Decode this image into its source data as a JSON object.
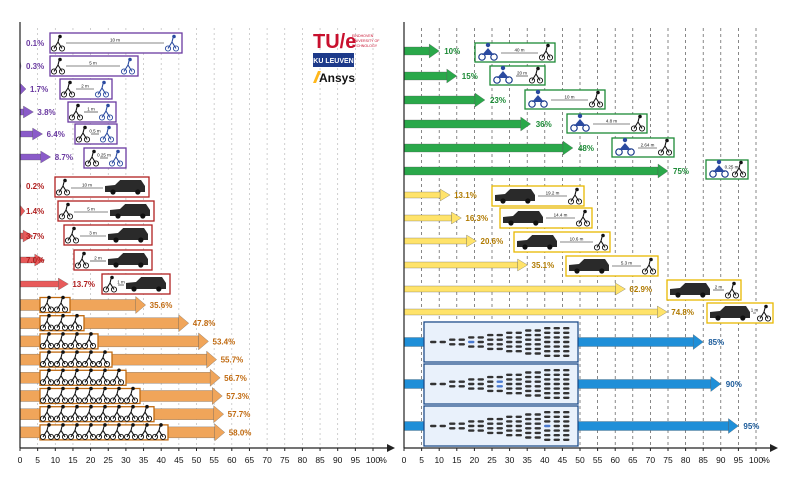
{
  "chart_data": [
    {
      "type": "bar",
      "subject": "cyclists drafting behind cyclists",
      "categories": [
        "10 m",
        "5 m",
        "2 m",
        "1 m",
        "0.5 m",
        "0.25 m"
      ],
      "values": [
        0.1,
        0.3,
        1.7,
        3.8,
        6.4,
        8.7
      ],
      "value_labels": [
        "0.1%",
        "0.3%",
        "1.7%",
        "3.8%",
        "6.4%",
        "8.7%"
      ],
      "color": "#8a5bc9",
      "label_color": "#6a3aa0"
    },
    {
      "type": "bar",
      "subject": "cyclist ahead of car",
      "categories": [
        "10 m",
        "5 m",
        "3 m",
        "2 m",
        "1 m"
      ],
      "values": [
        0.2,
        1.4,
        3.7,
        7.0,
        13.7
      ],
      "value_labels": [
        "0.2%",
        "1.4%",
        "3.7%",
        "7.0%",
        "13.7%"
      ],
      "color": "#e85a5a",
      "label_color": "#b02020"
    },
    {
      "type": "bar",
      "subject": "cyclist pacelines",
      "categories": [
        "2",
        "3",
        "4",
        "5",
        "6",
        "7",
        "8",
        "9"
      ],
      "values": [
        35.6,
        47.8,
        53.4,
        55.7,
        56.7,
        57.3,
        57.7,
        58.0
      ],
      "value_labels": [
        "35.6%",
        "47.8%",
        "53.4%",
        "55.7%",
        "56.7%",
        "57.3%",
        "57.7%",
        "58.0%"
      ],
      "color": "#f0a55a",
      "label_color": "#c06a10"
    },
    {
      "type": "bar",
      "subject": "cyclist ahead of motorbike",
      "categories": [
        "40 m",
        "20 m",
        "10 m",
        "4.8 m",
        "2.64 m",
        "0.25 m"
      ],
      "values": [
        10,
        15,
        23,
        36,
        48,
        75
      ],
      "value_labels": [
        "10%",
        "15%",
        "23%",
        "36%",
        "48%",
        "75%"
      ],
      "color": "#2aa84a",
      "label_color": "#1c8a36"
    },
    {
      "type": "bar",
      "subject": "cyclist behind car",
      "categories": [
        "19.2 m",
        "14.4 m",
        "10.6 m",
        "5.3 m",
        "2 m",
        "1 m"
      ],
      "values": [
        13.1,
        16.3,
        20.6,
        35.1,
        62.9,
        74.8
      ],
      "value_labels": [
        "13.1%",
        "16.3%",
        "20.6%",
        "35.1%",
        "62.9%",
        "74.8%"
      ],
      "color": "#ffe36a",
      "label_color": "#b07a00"
    },
    {
      "type": "bar",
      "subject": "cyclist in peloton",
      "categories": [
        "position 1",
        "position 2",
        "position 3"
      ],
      "values": [
        85,
        90,
        95
      ],
      "value_labels": [
        "85%",
        "90%",
        "95%"
      ],
      "color": "#1f8fd8",
      "label_color": "#1a5a9a"
    }
  ],
  "axis": {
    "ticks": [
      "0",
      "5",
      "10",
      "15",
      "20",
      "25",
      "30",
      "35",
      "40",
      "45",
      "50",
      "55",
      "60",
      "65",
      "70",
      "75",
      "80",
      "85",
      "90",
      "95",
      "100"
    ],
    "unit": "%",
    "xlim": [
      0,
      100
    ]
  },
  "logos": {
    "tue_main": "TU/e",
    "tue_sub_1": "EINDHOVEN",
    "tue_sub_2": "UNIVERSITY OF",
    "tue_sub_3": "TECHNOLOGY",
    "kuleuven": "KU LEUVEN",
    "ansys": "Ansys"
  },
  "colors": {
    "axis": "#222222",
    "grid": "#777777",
    "tue_red": "#c8102e",
    "ku_blue": "#1d3a8a",
    "peloton_box": "#1a4a8a"
  }
}
